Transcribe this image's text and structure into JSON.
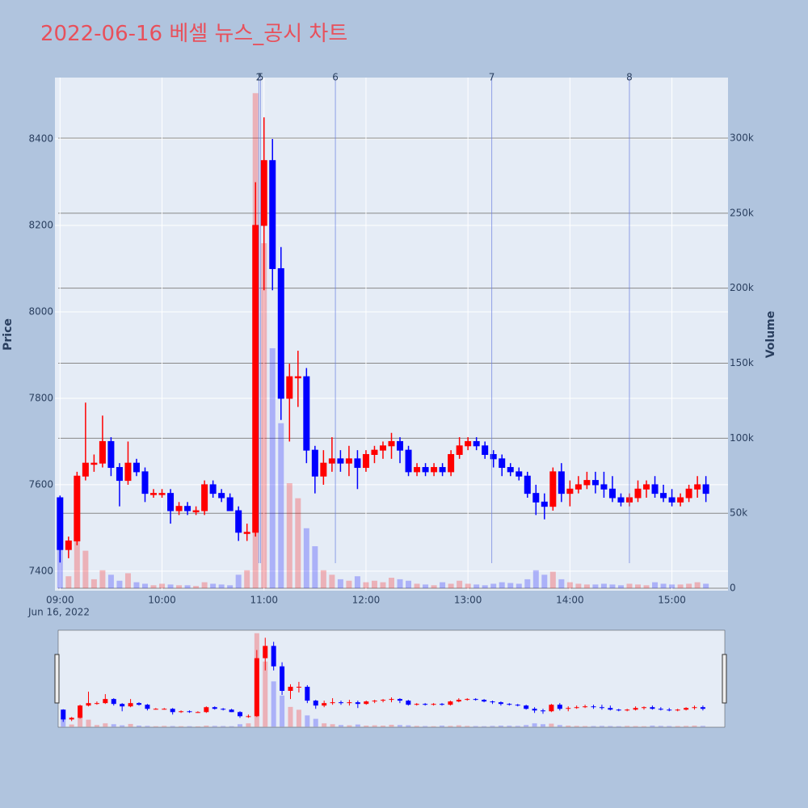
{
  "chart_data": {
    "type": "candlestick",
    "title": "2022-06-16 베셀 뉴스_공시 차트",
    "y_title": "Price",
    "y2_title": "Volume",
    "x_date_label": "Jun 16, 2022",
    "increasing_color": "#ff0000",
    "decreasing_color": "#0000ff",
    "x": [
      "2022-06-16 09:00",
      "2022-06-16 09:05",
      "2022-06-16 09:10",
      "2022-06-16 09:15",
      "2022-06-16 09:20",
      "2022-06-16 09:25",
      "2022-06-16 09:30",
      "2022-06-16 09:35",
      "2022-06-16 09:40",
      "2022-06-16 09:45",
      "2022-06-16 09:50",
      "2022-06-16 09:55",
      "2022-06-16 10:00",
      "2022-06-16 10:05",
      "2022-06-16 10:10",
      "2022-06-16 10:15",
      "2022-06-16 10:20",
      "2022-06-16 10:25",
      "2022-06-16 10:30",
      "2022-06-16 10:35",
      "2022-06-16 10:40",
      "2022-06-16 10:45",
      "2022-06-16 10:50",
      "2022-06-16 10:55",
      "2022-06-16 11:00",
      "2022-06-16 11:05",
      "2022-06-16 11:10",
      "2022-06-16 11:15",
      "2022-06-16 11:20",
      "2022-06-16 11:25",
      "2022-06-16 11:30",
      "2022-06-16 11:35",
      "2022-06-16 11:40",
      "2022-06-16 11:45",
      "2022-06-16 11:50",
      "2022-06-16 11:55",
      "2022-06-16 12:00",
      "2022-06-16 12:05",
      "2022-06-16 12:10",
      "2022-06-16 12:15",
      "2022-06-16 12:20",
      "2022-06-16 12:25",
      "2022-06-16 12:30",
      "2022-06-16 12:35",
      "2022-06-16 12:40",
      "2022-06-16 12:45",
      "2022-06-16 12:50",
      "2022-06-16 12:55",
      "2022-06-16 13:00",
      "2022-06-16 13:05",
      "2022-06-16 13:10",
      "2022-06-16 13:15",
      "2022-06-16 13:20",
      "2022-06-16 13:25",
      "2022-06-16 13:30",
      "2022-06-16 13:35",
      "2022-06-16 13:40",
      "2022-06-16 13:45",
      "2022-06-16 13:50",
      "2022-06-16 13:55",
      "2022-06-16 14:00",
      "2022-06-16 14:05",
      "2022-06-16 14:10",
      "2022-06-16 14:15",
      "2022-06-16 14:20",
      "2022-06-16 14:25",
      "2022-06-16 14:30",
      "2022-06-16 14:35",
      "2022-06-16 14:40",
      "2022-06-16 14:45",
      "2022-06-16 14:50",
      "2022-06-16 14:55",
      "2022-06-16 15:00",
      "2022-06-16 15:05",
      "2022-06-16 15:10",
      "2022-06-16 15:15",
      "2022-06-16 15:20"
    ],
    "open": [
      7570,
      7450,
      7470,
      7620,
      7650,
      7650,
      7700,
      7640,
      7610,
      7650,
      7630,
      7580,
      7580,
      7580,
      7540,
      7550,
      7540,
      7540,
      7600,
      7580,
      7570,
      7540,
      7490,
      7490,
      8200,
      8350,
      8100,
      7800,
      7850,
      7850,
      7680,
      7620,
      7650,
      7660,
      7650,
      7660,
      7640,
      7670,
      7680,
      7690,
      7700,
      7680,
      7630,
      7640,
      7630,
      7640,
      7630,
      7670,
      7690,
      7700,
      7690,
      7670,
      7660,
      7640,
      7630,
      7620,
      7580,
      7560,
      7550,
      7630,
      7580,
      7590,
      7600,
      7610,
      7600,
      7590,
      7570,
      7560,
      7570,
      7590,
      7600,
      7580,
      7570,
      7560,
      7570,
      7590,
      7600
    ],
    "high": [
      7575,
      7480,
      7630,
      7790,
      7670,
      7760,
      7710,
      7650,
      7700,
      7660,
      7640,
      7590,
      7590,
      7590,
      7560,
      7560,
      7550,
      7610,
      7610,
      7590,
      7580,
      7550,
      7510,
      8300,
      8450,
      8400,
      8150,
      7880,
      7910,
      7870,
      7690,
      7680,
      7710,
      7680,
      7690,
      7680,
      7680,
      7690,
      7700,
      7720,
      7710,
      7690,
      7650,
      7650,
      7650,
      7650,
      7680,
      7710,
      7710,
      7710,
      7700,
      7680,
      7670,
      7650,
      7640,
      7630,
      7600,
      7580,
      7640,
      7650,
      7610,
      7620,
      7630,
      7630,
      7630,
      7620,
      7580,
      7580,
      7610,
      7610,
      7620,
      7600,
      7590,
      7580,
      7600,
      7620,
      7620
    ],
    "low": [
      7420,
      7430,
      7460,
      7610,
      7630,
      7640,
      7620,
      7550,
      7600,
      7620,
      7560,
      7570,
      7570,
      7510,
      7530,
      7530,
      7530,
      7530,
      7570,
      7560,
      7540,
      7470,
      7470,
      7480,
      8050,
      8050,
      7750,
      7700,
      7780,
      7650,
      7580,
      7600,
      7630,
      7630,
      7620,
      7590,
      7630,
      7650,
      7660,
      7660,
      7650,
      7620,
      7620,
      7620,
      7620,
      7620,
      7620,
      7660,
      7680,
      7680,
      7660,
      7640,
      7620,
      7620,
      7610,
      7570,
      7530,
      7520,
      7540,
      7560,
      7550,
      7580,
      7590,
      7580,
      7570,
      7560,
      7550,
      7550,
      7560,
      7570,
      7570,
      7560,
      7550,
      7550,
      7560,
      7570,
      7560
    ],
    "close": [
      7450,
      7470,
      7620,
      7650,
      7650,
      7700,
      7640,
      7610,
      7650,
      7630,
      7580,
      7580,
      7580,
      7540,
      7550,
      7540,
      7540,
      7600,
      7580,
      7570,
      7540,
      7490,
      7490,
      8200,
      8350,
      8100,
      7800,
      7850,
      7850,
      7680,
      7620,
      7650,
      7660,
      7650,
      7660,
      7640,
      7670,
      7680,
      7690,
      7700,
      7680,
      7630,
      7640,
      7630,
      7640,
      7630,
      7670,
      7690,
      7700,
      7690,
      7670,
      7660,
      7640,
      7630,
      7620,
      7580,
      7560,
      7550,
      7630,
      7580,
      7590,
      7600,
      7610,
      7600,
      7590,
      7570,
      7560,
      7570,
      7590,
      7600,
      7580,
      7570,
      7560,
      7570,
      7590,
      7600,
      7580
    ],
    "volume": [
      30000,
      8000,
      45000,
      25000,
      6000,
      12000,
      9000,
      5000,
      10000,
      4000,
      3000,
      2000,
      3000,
      2500,
      2000,
      2000,
      1500,
      4000,
      3000,
      2500,
      2000,
      9000,
      12000,
      330000,
      230000,
      160000,
      110000,
      70000,
      60000,
      40000,
      28000,
      12000,
      9000,
      6000,
      5000,
      8000,
      4000,
      5000,
      4000,
      7000,
      6000,
      5000,
      3000,
      2500,
      2000,
      4000,
      3000,
      5000,
      3000,
      2500,
      2000,
      3000,
      4000,
      3500,
      3000,
      6000,
      12000,
      9000,
      11000,
      6000,
      4000,
      3000,
      2500,
      2500,
      3000,
      2500,
      2000,
      3000,
      2500,
      2000,
      4000,
      3000,
      2500,
      2500,
      3000,
      4000,
      3000
    ],
    "xlim": [
      "2022-06-16 08:57",
      "2022-06-16 15:33"
    ],
    "xticks": [
      {
        "value": "2022-06-16 09:00",
        "label": "09:00"
      },
      {
        "value": "2022-06-16 10:00",
        "label": "10:00"
      },
      {
        "value": "2022-06-16 11:00",
        "label": "11:00"
      },
      {
        "value": "2022-06-16 12:00",
        "label": "12:00"
      },
      {
        "value": "2022-06-16 13:00",
        "label": "13:00"
      },
      {
        "value": "2022-06-16 14:00",
        "label": "14:00"
      },
      {
        "value": "2022-06-16 15:00",
        "label": "15:00"
      }
    ],
    "ylim": [
      7355,
      8542
    ],
    "yticks": [
      7400,
      7600,
      7800,
      8000,
      8200,
      8400
    ],
    "y2lim": [
      -1600,
      340400
    ],
    "y2ticks": [
      0,
      {
        "value": 50000,
        "label": "50k"
      },
      {
        "value": 100000,
        "label": "100k"
      },
      {
        "value": 150000,
        "label": "150k"
      },
      {
        "value": 200000,
        "label": "200k"
      },
      {
        "value": 250000,
        "label": "250k"
      },
      {
        "value": 300000,
        "label": "300k"
      }
    ],
    "vlines": [
      {
        "x": "2022-06-16 10:57",
        "label": "2"
      },
      {
        "x": "2022-06-16 10:58",
        "label": "5"
      },
      {
        "x": "2022-06-16 11:42",
        "label": "6"
      },
      {
        "x": "2022-06-16 13:14",
        "label": "7"
      },
      {
        "x": "2022-06-16 14:35",
        "label": "8"
      }
    ],
    "grid": true,
    "rangeslider": true
  }
}
